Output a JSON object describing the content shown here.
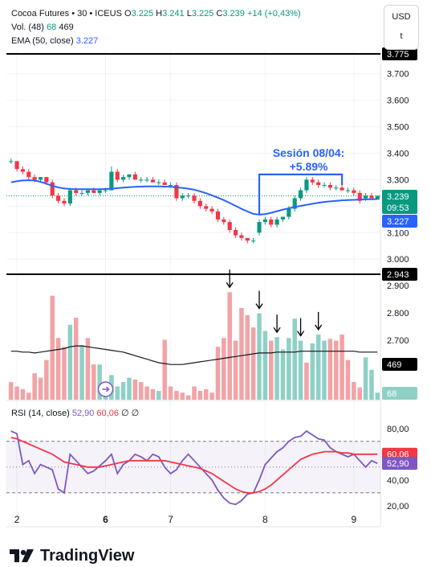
{
  "header": {
    "symbol": "Cocoa Futures • 30 • ICEUS",
    "o_label": "O",
    "o_value": "3.225",
    "h_label": "H",
    "h_value": "3.241",
    "l_label": "L",
    "l_value": "3.225",
    "c_label": "C",
    "c_value": "3.239",
    "change": "+14 (+0,43%)",
    "vol_label": "Vol. (48)",
    "vol_v1": "68",
    "vol_v2": "469",
    "ema_label": "EMA (50, close)",
    "ema_value": "3.227"
  },
  "currency": {
    "line1": "USD",
    "line2": "t"
  },
  "annotation": {
    "line1": "Sesión 08/04:",
    "line2": "+5.89%"
  },
  "price_axis": {
    "ticks": [
      "3.700",
      "3.600",
      "3.500",
      "3.400",
      "3.300",
      "3.100",
      "3.000",
      "2.900",
      "2.800",
      "2.700"
    ],
    "top_level": "3.775",
    "bottom_level": "2.943",
    "last_price": "3.239",
    "countdown": "09:53",
    "ema_tag": "3.227",
    "vol_ma_tag": "469",
    "vol_tag": "68"
  },
  "rsi": {
    "label": "RSI (14, close)",
    "v1": "52,90",
    "v2": "60,06",
    "sym1": "∅",
    "sym2": "∅",
    "ticks": [
      "80,00",
      "40,00",
      "20,00"
    ],
    "tag1": "60,06",
    "tag2": "52,90"
  },
  "x_axis": {
    "labels": [
      "2",
      "6",
      "7",
      "8",
      "9"
    ]
  },
  "brand": {
    "name": "TradingView"
  },
  "colors": {
    "up": "#089981",
    "down": "#f23645",
    "ema": "#2962ff",
    "rsi": "#7e57c2",
    "rsi_ma": "#f23645",
    "vol_up": "#8fd0c6",
    "vol_down": "#f2a3a6",
    "annot": "#2962ff"
  },
  "chart_data": {
    "type": "candlestick",
    "price_ylim": [
      2.943,
      3.775
    ],
    "candles": [
      [
        3.37,
        3.38,
        3.36,
        3.37
      ],
      [
        3.37,
        3.37,
        3.33,
        3.34
      ],
      [
        3.34,
        3.35,
        3.32,
        3.33
      ],
      [
        3.33,
        3.34,
        3.3,
        3.31
      ],
      [
        3.31,
        3.32,
        3.29,
        3.3
      ],
      [
        3.3,
        3.31,
        3.29,
        3.31
      ],
      [
        3.31,
        3.31,
        3.28,
        3.29
      ],
      [
        3.29,
        3.3,
        3.23,
        3.24
      ],
      [
        3.24,
        3.25,
        3.21,
        3.22
      ],
      [
        3.22,
        3.23,
        3.2,
        3.21
      ],
      [
        3.21,
        3.27,
        3.2,
        3.26
      ],
      [
        3.26,
        3.27,
        3.24,
        3.25
      ],
      [
        3.25,
        3.26,
        3.24,
        3.25
      ],
      [
        3.25,
        3.26,
        3.24,
        3.26
      ],
      [
        3.26,
        3.27,
        3.25,
        3.25
      ],
      [
        3.25,
        3.26,
        3.24,
        3.26
      ],
      [
        3.26,
        3.27,
        3.25,
        3.26
      ],
      [
        3.26,
        3.35,
        3.26,
        3.33
      ],
      [
        3.33,
        3.34,
        3.29,
        3.3
      ],
      [
        3.3,
        3.32,
        3.29,
        3.31
      ],
      [
        3.31,
        3.32,
        3.3,
        3.32
      ],
      [
        3.32,
        3.33,
        3.3,
        3.3
      ],
      [
        3.3,
        3.31,
        3.29,
        3.3
      ],
      [
        3.3,
        3.31,
        3.29,
        3.3
      ],
      [
        3.3,
        3.31,
        3.29,
        3.29
      ],
      [
        3.29,
        3.3,
        3.28,
        3.29
      ],
      [
        3.29,
        3.3,
        3.28,
        3.28
      ],
      [
        3.28,
        3.29,
        3.27,
        3.28
      ],
      [
        3.28,
        3.29,
        3.22,
        3.23
      ],
      [
        3.23,
        3.25,
        3.22,
        3.24
      ],
      [
        3.24,
        3.25,
        3.23,
        3.24
      ],
      [
        3.24,
        3.25,
        3.21,
        3.22
      ],
      [
        3.22,
        3.23,
        3.19,
        3.2
      ],
      [
        3.2,
        3.21,
        3.18,
        3.19
      ],
      [
        3.19,
        3.2,
        3.17,
        3.18
      ],
      [
        3.18,
        3.19,
        3.14,
        3.15
      ],
      [
        3.15,
        3.16,
        3.13,
        3.14
      ],
      [
        3.14,
        3.15,
        3.1,
        3.11
      ],
      [
        3.11,
        3.12,
        3.08,
        3.09
      ],
      [
        3.09,
        3.1,
        3.07,
        3.08
      ],
      [
        3.08,
        3.08,
        3.06,
        3.07
      ],
      [
        3.07,
        3.08,
        3.06,
        3.07
      ],
      [
        3.1,
        3.15,
        3.09,
        3.14
      ],
      [
        3.14,
        3.16,
        3.13,
        3.15
      ],
      [
        3.15,
        3.16,
        3.12,
        3.13
      ],
      [
        3.13,
        3.16,
        3.12,
        3.15
      ],
      [
        3.15,
        3.16,
        3.14,
        3.16
      ],
      [
        3.16,
        3.2,
        3.15,
        3.19
      ],
      [
        3.19,
        3.24,
        3.18,
        3.23
      ],
      [
        3.23,
        3.27,
        3.22,
        3.26
      ],
      [
        3.26,
        3.31,
        3.25,
        3.3
      ],
      [
        3.3,
        3.31,
        3.28,
        3.29
      ],
      [
        3.29,
        3.3,
        3.27,
        3.28
      ],
      [
        3.28,
        3.29,
        3.27,
        3.28
      ],
      [
        3.28,
        3.29,
        3.26,
        3.27
      ],
      [
        3.27,
        3.28,
        3.26,
        3.27
      ],
      [
        3.27,
        3.28,
        3.26,
        3.26
      ],
      [
        3.26,
        3.27,
        3.25,
        3.26
      ],
      [
        3.26,
        3.27,
        3.24,
        3.25
      ],
      [
        3.25,
        3.26,
        3.21,
        3.22
      ],
      [
        3.23,
        3.25,
        3.22,
        3.24
      ],
      [
        3.24,
        3.25,
        3.23,
        3.23
      ],
      [
        3.225,
        3.241,
        3.225,
        3.239
      ]
    ],
    "ema": [
      3.29,
      3.294,
      3.297,
      3.298,
      3.297,
      3.292,
      3.285,
      3.277,
      3.271,
      3.267,
      3.265,
      3.264,
      3.264,
      3.264,
      3.264,
      3.264,
      3.265,
      3.266,
      3.268,
      3.27,
      3.272,
      3.273,
      3.274,
      3.275,
      3.275,
      3.275,
      3.274,
      3.273,
      3.271,
      3.269,
      3.266,
      3.262,
      3.256,
      3.249,
      3.241,
      3.232,
      3.223,
      3.212,
      3.201,
      3.19,
      3.18,
      3.171,
      3.168,
      3.17,
      3.175,
      3.181,
      3.187,
      3.192,
      3.197,
      3.201,
      3.205,
      3.209,
      3.213,
      3.216,
      3.218,
      3.22,
      3.222,
      3.223,
      3.224,
      3.225,
      3.226,
      3.226,
      3.227
    ],
    "volume": [
      20,
      15,
      12,
      8,
      30,
      25,
      45,
      118,
      70,
      60,
      85,
      93,
      62,
      70,
      40,
      40,
      18,
      28,
      15,
      20,
      25,
      23,
      20,
      15,
      12,
      10,
      68,
      15,
      10,
      8,
      5,
      15,
      10,
      12,
      8,
      60,
      70,
      122,
      67,
      104,
      96,
      82,
      98,
      78,
      67,
      71,
      57,
      70,
      92,
      67,
      42,
      64,
      74,
      67,
      69,
      67,
      74,
      45,
      20,
      14,
      48,
      34,
      8
    ],
    "volume_colors": [
      "d",
      "d",
      "d",
      "d",
      "d",
      "d",
      "d",
      "d",
      "d",
      "d",
      "u",
      "d",
      "u",
      "d",
      "d",
      "u",
      "u",
      "u",
      "u",
      "u",
      "u",
      "d",
      "d",
      "d",
      "d",
      "u",
      "d",
      "d",
      "d",
      "d",
      "d",
      "d",
      "d",
      "d",
      "d",
      "d",
      "d",
      "d",
      "d",
      "d",
      "d",
      "d",
      "u",
      "u",
      "d",
      "u",
      "u",
      "u",
      "u",
      "u",
      "d",
      "u",
      "u",
      "u",
      "d",
      "d",
      "d",
      "d",
      "d",
      "d",
      "u",
      "u",
      "u"
    ],
    "vol_ma": [
      55,
      55,
      54,
      54,
      53,
      54,
      55,
      56,
      57,
      58,
      60,
      61,
      61,
      60,
      59,
      58,
      57,
      56,
      55,
      54,
      52,
      50,
      48,
      46,
      44,
      42,
      41,
      40,
      40,
      40,
      41,
      42,
      43,
      44,
      45,
      46,
      47,
      48,
      49,
      50,
      51,
      52,
      53,
      53,
      53,
      54,
      54,
      54,
      54,
      55,
      55,
      55,
      55,
      55,
      55,
      55,
      55,
      55,
      55,
      54,
      54,
      54,
      54
    ],
    "rsi": [
      78,
      76,
      52,
      55,
      45,
      52,
      50,
      48,
      33,
      30,
      60,
      55,
      50,
      45,
      47,
      51,
      55,
      60,
      45,
      52,
      55,
      60,
      58,
      55,
      60,
      58,
      50,
      45,
      48,
      55,
      60,
      55,
      50,
      45,
      40,
      32,
      26,
      22,
      21,
      24,
      29,
      30,
      40,
      52,
      57,
      62,
      65,
      70,
      73,
      74,
      78,
      75,
      72,
      71,
      65,
      62,
      60,
      58,
      60,
      55,
      50,
      55,
      52.9
    ],
    "rsi_ma": [
      73,
      72,
      70,
      68,
      66,
      64,
      62,
      60,
      57,
      54,
      53,
      52,
      51,
      50,
      50,
      50,
      51,
      52,
      53,
      54,
      55,
      55,
      55,
      55,
      55,
      55,
      55,
      54,
      53,
      52,
      51,
      50,
      49,
      47,
      45,
      42,
      39,
      36,
      33,
      31,
      30,
      30,
      31,
      33,
      36,
      40,
      44,
      48,
      52,
      56,
      58,
      60,
      61,
      62,
      62,
      62,
      61,
      61,
      60,
      60,
      60,
      60,
      60.06
    ],
    "rsi_ylim": [
      13,
      88
    ],
    "arrows_at": [
      37,
      42,
      45,
      49,
      52
    ]
  }
}
